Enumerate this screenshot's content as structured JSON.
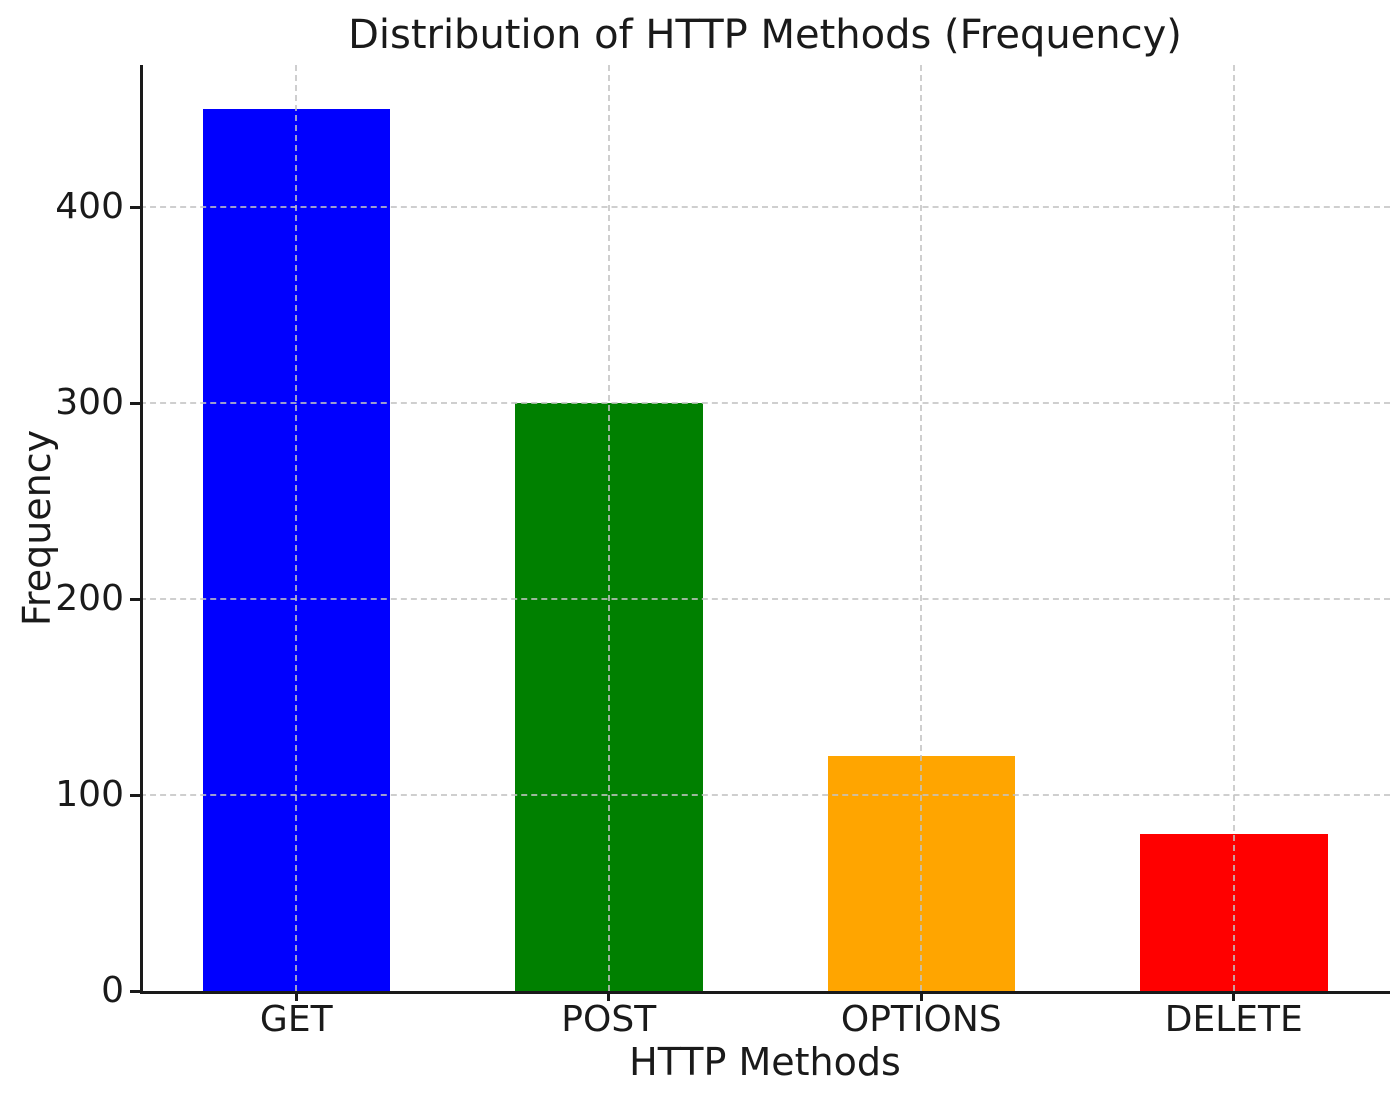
{
  "chart_data": {
    "type": "bar",
    "title": "Distribution of HTTP Methods (Frequency)",
    "xlabel": "HTTP Methods",
    "ylabel": "Frequency",
    "categories": [
      "GET",
      "POST",
      "OPTIONS",
      "DELETE"
    ],
    "values": [
      450,
      300,
      120,
      80
    ],
    "bar_colors": [
      "#0000ff",
      "#008000",
      "#ffa500",
      "#ff0000"
    ],
    "yticks": [
      0,
      100,
      200,
      300,
      400
    ],
    "ylim": [
      0,
      472.5
    ],
    "bar_width_fraction": 0.6,
    "grid": "dashed light-gray horizontal and vertical gridlines, drawn above bars",
    "legend_position": "none",
    "background_color": "#ffffff",
    "axis_color": "#1a1a1a",
    "grid_color": "#c4c4c4"
  }
}
